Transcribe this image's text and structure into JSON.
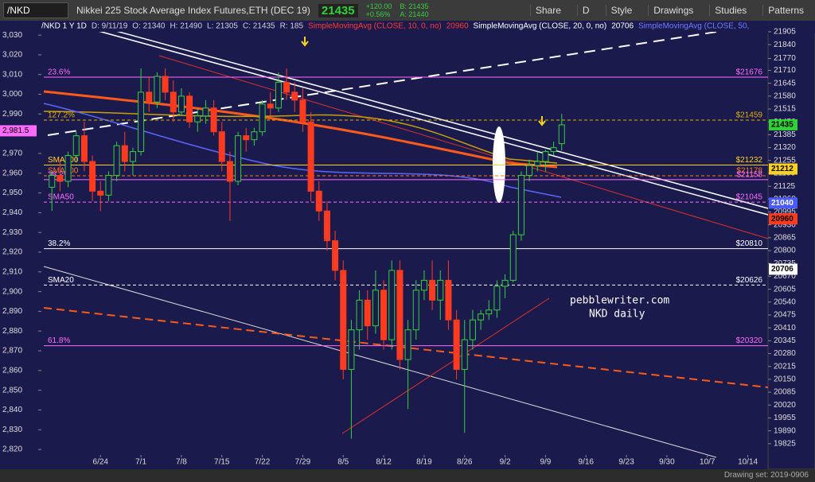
{
  "toolbar": {
    "symbol": "/NKD",
    "description": "Nikkei 225 Stock Average Index Futures,ETH (DEC 19)",
    "last": "21435",
    "change": "+120.00",
    "change_pct": "+0.56%",
    "bid": "B: 21435",
    "ask": "A: 21440",
    "buttons": [
      "Share",
      "D",
      "Style",
      "Drawings",
      "Studies",
      "Patterns"
    ]
  },
  "chart_data": {
    "type": "candlestick",
    "legend": [
      {
        "text": "/NKD 1 Y 1D",
        "color": "#ffffff"
      },
      {
        "text": "D: 9/11/19",
        "color": "#cfcfe0"
      },
      {
        "text": "O: 21340",
        "color": "#cfcfe0"
      },
      {
        "text": "H: 21490",
        "color": "#cfcfe0"
      },
      {
        "text": "L: 21305",
        "color": "#cfcfe0"
      },
      {
        "text": "C: 21435",
        "color": "#cfcfe0"
      },
      {
        "text": "R: 185",
        "color": "#cfcfe0"
      },
      {
        "text": "SimpleMovingAvg (CLOSE, 10, 0, no)",
        "color": "#ff3b30"
      },
      {
        "text": "20960",
        "color": "#ff3b30"
      },
      {
        "text": "SimpleMovingAvg (CLOSE, 20, 0, no)",
        "color": "#ffffff"
      },
      {
        "text": "20706",
        "color": "#ffffff"
      },
      {
        "text": "SimpleMovingAvg (CLOSE, 50,",
        "color": "#6f7cff"
      }
    ],
    "open": [
      21120,
      21180,
      21150,
      21280,
      21380,
      21250,
      21100,
      21080,
      21180,
      21330,
      21250,
      21300,
      21600,
      21550,
      21680,
      21600,
      21500,
      21580,
      21450,
      21480,
      21520,
      21400,
      21250,
      21150,
      21380,
      21360,
      21400,
      21540,
      21520,
      21650,
      21600,
      21560,
      21450,
      21100,
      21000,
      20850,
      20700,
      20200,
      20400,
      20550,
      20420,
      20600,
      20350,
      20700,
      20250,
      20400,
      20600,
      20650,
      20550,
      20650,
      20450,
      20200,
      20350,
      20450,
      20480,
      20500,
      20620,
      20650,
      20880,
      21180,
      21230,
      21250,
      21300,
      21340
    ],
    "high": [
      21200,
      21260,
      21300,
      21400,
      21450,
      21280,
      21150,
      21200,
      21350,
      21400,
      21320,
      21720,
      21680,
      21700,
      21720,
      21660,
      21620,
      21600,
      21520,
      21560,
      21560,
      21450,
      21300,
      21400,
      21420,
      21420,
      21560,
      21600,
      21700,
      21720,
      21650,
      21620,
      21500,
      21150,
      21050,
      20900,
      20750,
      20450,
      20600,
      20600,
      20700,
      20650,
      20750,
      20750,
      20450,
      20650,
      20700,
      20750,
      20700,
      20750,
      20500,
      20450,
      20500,
      20500,
      20550,
      20650,
      20680,
      20900,
      21200,
      21260,
      21300,
      21310,
      21350,
      21490
    ],
    "low": [
      21000,
      21100,
      21120,
      21250,
      21200,
      21050,
      21000,
      21050,
      21150,
      21200,
      21180,
      21280,
      21500,
      21520,
      21560,
      21450,
      21480,
      21420,
      21400,
      21440,
      21380,
      21200,
      20950,
      21130,
      21300,
      21330,
      21380,
      21480,
      21500,
      21560,
      21500,
      21400,
      21050,
      20950,
      20800,
      20650,
      20150,
      19850,
      20300,
      20350,
      20380,
      20300,
      20300,
      20200,
      20000,
      20350,
      20550,
      20500,
      20450,
      20400,
      20150,
      19880,
      20300,
      20400,
      20450,
      20460,
      20560,
      20640,
      20850,
      21150,
      21200,
      21200,
      21280,
      21305
    ],
    "close": [
      21180,
      21150,
      21280,
      21380,
      21250,
      21100,
      21080,
      21180,
      21330,
      21250,
      21300,
      21600,
      21550,
      21680,
      21600,
      21500,
      21580,
      21450,
      21480,
      21520,
      21400,
      21250,
      21150,
      21380,
      21360,
      21400,
      21540,
      21520,
      21650,
      21600,
      21560,
      21450,
      21100,
      21000,
      20850,
      20700,
      20200,
      20400,
      20550,
      20420,
      20600,
      20350,
      20700,
      20250,
      20400,
      20600,
      20650,
      20550,
      20650,
      20450,
      20200,
      20350,
      20450,
      20480,
      20500,
      20620,
      20650,
      20880,
      21180,
      21230,
      21250,
      21300,
      21320,
      21435
    ],
    "up_color": "#32d13a",
    "down_color": "#ff3b1f",
    "xlim": [
      -1.5,
      88.5
    ],
    "xticks": [
      {
        "value": 6,
        "label": "6/24"
      },
      {
        "value": 11,
        "label": "7/1"
      },
      {
        "value": 16,
        "label": "7/8"
      },
      {
        "value": 21,
        "label": "7/15"
      },
      {
        "value": 26,
        "label": "7/22"
      },
      {
        "value": 31,
        "label": "7/29"
      },
      {
        "value": 36,
        "label": "8/5"
      },
      {
        "value": 41,
        "label": "8/12"
      },
      {
        "value": 46,
        "label": "8/19"
      },
      {
        "value": 51,
        "label": "8/26"
      },
      {
        "value": 56,
        "label": "9/2"
      },
      {
        "value": 61,
        "label": "9/9"
      },
      {
        "value": 66,
        "label": "9/16"
      },
      {
        "value": 71,
        "label": "9/23"
      },
      {
        "value": 76,
        "label": "9/30"
      },
      {
        "value": 81,
        "label": "10/7"
      },
      {
        "value": 86,
        "label": "10/14"
      }
    ],
    "ylim": [
      19756,
      21953
    ],
    "yticks": [
      21905,
      21840,
      21770,
      21710,
      21645,
      21580,
      21515,
      21450,
      21385,
      21320,
      21255,
      21190,
      21125,
      21060,
      20995,
      20930,
      20865,
      20800,
      20735,
      20670,
      20605,
      20540,
      20475,
      20410,
      20345,
      20280,
      20215,
      20150,
      20085,
      20020,
      19955,
      19890,
      19825
    ],
    "y2lim": [
      2816,
      3036.5
    ],
    "y2ticks": [
      {
        "value": 3030,
        "label": "3,030"
      },
      {
        "value": 3020,
        "label": "3,020"
      },
      {
        "value": 3010,
        "label": "3,010"
      },
      {
        "value": 3000,
        "label": "3,000"
      },
      {
        "value": 2990,
        "label": "2,990"
      },
      {
        "value": 2970,
        "label": "2,970"
      },
      {
        "value": 2960,
        "label": "2,960"
      },
      {
        "value": 2950,
        "label": "2,950"
      },
      {
        "value": 2940,
        "label": "2,940"
      },
      {
        "value": 2930,
        "label": "2,930"
      },
      {
        "value": 2920,
        "label": "2,920"
      },
      {
        "value": 2910,
        "label": "2,910"
      },
      {
        "value": 2900,
        "label": "2,900"
      },
      {
        "value": 2890,
        "label": "2,890"
      },
      {
        "value": 2880,
        "label": "2,880"
      },
      {
        "value": 2870,
        "label": "2,870"
      },
      {
        "value": 2860,
        "label": "2,860"
      },
      {
        "value": 2850,
        "label": "2,850"
      },
      {
        "value": 2840,
        "label": "2,840"
      },
      {
        "value": 2830,
        "label": "2,830"
      },
      {
        "value": 2820,
        "label": "2,820"
      }
    ],
    "y2_tag": {
      "value": 2981.5,
      "label": "2,981.5",
      "color": "#ff6bff"
    },
    "levels": [
      {
        "name": "23.6%",
        "value": 21676,
        "value_label": "$21676",
        "color": "#ff6bff"
      },
      {
        "name": "127.2%",
        "value": 21459,
        "value_label": "$21459",
        "color": "#e0b000"
      },
      {
        "name": "SMA100",
        "value": 21232,
        "value_label": "$21232",
        "color": "#ffd21f"
      },
      {
        "name": "SMA200",
        "value": 21178,
        "value_label": "$21178",
        "color": "#ff7a1a"
      },
      {
        "name": "38.2%",
        "value": 21158,
        "value_label": "$21158",
        "color": "#ff6bff"
      },
      {
        "name": "SMA50",
        "value": 21045,
        "value_label": "$21045",
        "color": "#ff6bff"
      },
      {
        "name": "38.2%",
        "value": 20810,
        "value_label": "$20810",
        "color": "#ffffff"
      },
      {
        "name": "SMA20",
        "value": 20626,
        "value_label": "$20626",
        "color": "#ffffff"
      },
      {
        "name": "61.8%",
        "value": 20320,
        "value_label": "$20320",
        "color": "#ff6bff"
      }
    ],
    "price_tags": [
      {
        "value": 21435,
        "color": "#32d13a"
      },
      {
        "value": 21212,
        "color": "#ffd21f"
      },
      {
        "value": 21040,
        "color": "#4a5cff"
      },
      {
        "value": 20960,
        "color": "#ff3b1f"
      },
      {
        "value": 20706,
        "color": "#ffffff"
      }
    ],
    "watermark": [
      "pebblewriter.com",
      "NKD daily"
    ]
  },
  "footer": {
    "drawing_set": "Drawing set: 2019-0906"
  }
}
